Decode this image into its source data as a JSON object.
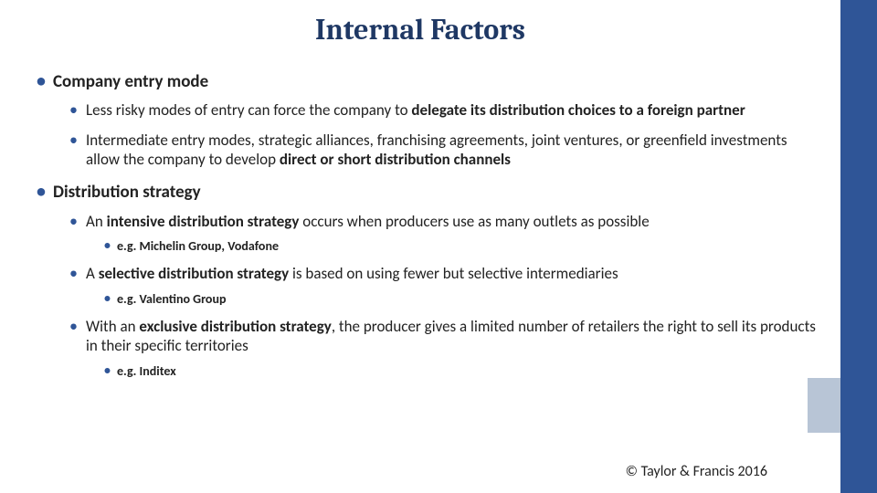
{
  "title": "Internal Factors",
  "sections": [
    {
      "heading": "Company entry mode",
      "items": [
        {
          "pre": "Less risky modes of entry can force the company to ",
          "bold": "delegate its distribution choices to a foreign partner",
          "post": ""
        },
        {
          "pre": "Intermediate entry modes, strategic alliances, franchising agreements, joint ventures, or greenfield investments allow the company to develop ",
          "bold": "direct or short distribution channels",
          "post": ""
        }
      ]
    },
    {
      "heading": "Distribution strategy",
      "items": [
        {
          "pre": "An ",
          "bold": "intensive distribution strategy",
          "post": " occurs when producers use as many outlets as possible",
          "example": "e.g. Michelin Group, Vodafone"
        },
        {
          "pre": "A ",
          "bold": "selective distribution strategy",
          "post": " is based on using fewer but selective intermediaries",
          "example": "e.g. Valentino Group"
        },
        {
          "pre": "With an ",
          "bold": "exclusive distribution strategy",
          "post": ", the producer gives a limited number of retailers the right to sell its products in their specific territories",
          "example": "e.g. Inditex"
        }
      ]
    }
  ],
  "footer": "© Taylor & Francis 2016",
  "colors": {
    "title": "#1f3864",
    "bullet": "#2f5597",
    "bandDark": "#2f5597",
    "bandLight": "#b8c5d6",
    "text": "#222222",
    "background": "#ffffff"
  },
  "fonts": {
    "title_family": "Cambria, Georgia, Times New Roman, serif",
    "body_family": "Calibri, Segoe UI, Arial, sans-serif",
    "title_size_pt": 24,
    "lvl1_size_pt": 14,
    "lvl2_size_pt": 13,
    "lvl3_size_pt": 11
  }
}
